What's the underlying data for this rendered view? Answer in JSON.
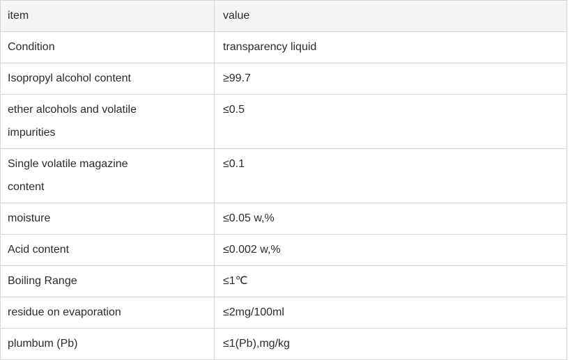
{
  "colors": {
    "header_bg": "#f4f5f7",
    "border": "#d5d6d8",
    "text": "#2b2b2b",
    "row_bg": "#ffffff"
  },
  "table": {
    "columns": [
      {
        "key": "item",
        "label": "item"
      },
      {
        "key": "value",
        "label": "value"
      }
    ],
    "rows": [
      {
        "item": "Condition",
        "value": "transparency liquid"
      },
      {
        "item": "Isopropyl alcohol content",
        "value": "≥99.7"
      },
      {
        "item": "ether alcohols and volatile impurities",
        "value": "≤0.5"
      },
      {
        "item": "Single volatile magazine content",
        "value": "≤0.1"
      },
      {
        "item": "moisture",
        "value": "≤0.05 w,%"
      },
      {
        "item": "Acid content",
        "value": "≤0.002 w,%"
      },
      {
        "item": "Boiling Range",
        "value": "≤1℃"
      },
      {
        "item": "residue on evaporation",
        "value": "≤2mg/100ml"
      },
      {
        "item": "plumbum (Pb)",
        "value": "≤1(Pb),mg/kg"
      }
    ]
  },
  "chart_data": {
    "type": "table",
    "columns": [
      "item",
      "value"
    ],
    "rows": [
      [
        "Condition",
        "transparency liquid"
      ],
      [
        "Isopropyl alcohol content",
        "≥99.7"
      ],
      [
        "ether alcohols and volatile impurities",
        "≤0.5"
      ],
      [
        "Single volatile magazine content",
        "≤0.1"
      ],
      [
        "moisture",
        "≤0.05 w,%"
      ],
      [
        "Acid content",
        "≤0.002 w,%"
      ],
      [
        "Boiling Range",
        "≤1℃"
      ],
      [
        "residue on evaporation",
        "≤2mg/100ml"
      ],
      [
        "plumbum (Pb)",
        "≤1(Pb),mg/kg"
      ]
    ]
  }
}
